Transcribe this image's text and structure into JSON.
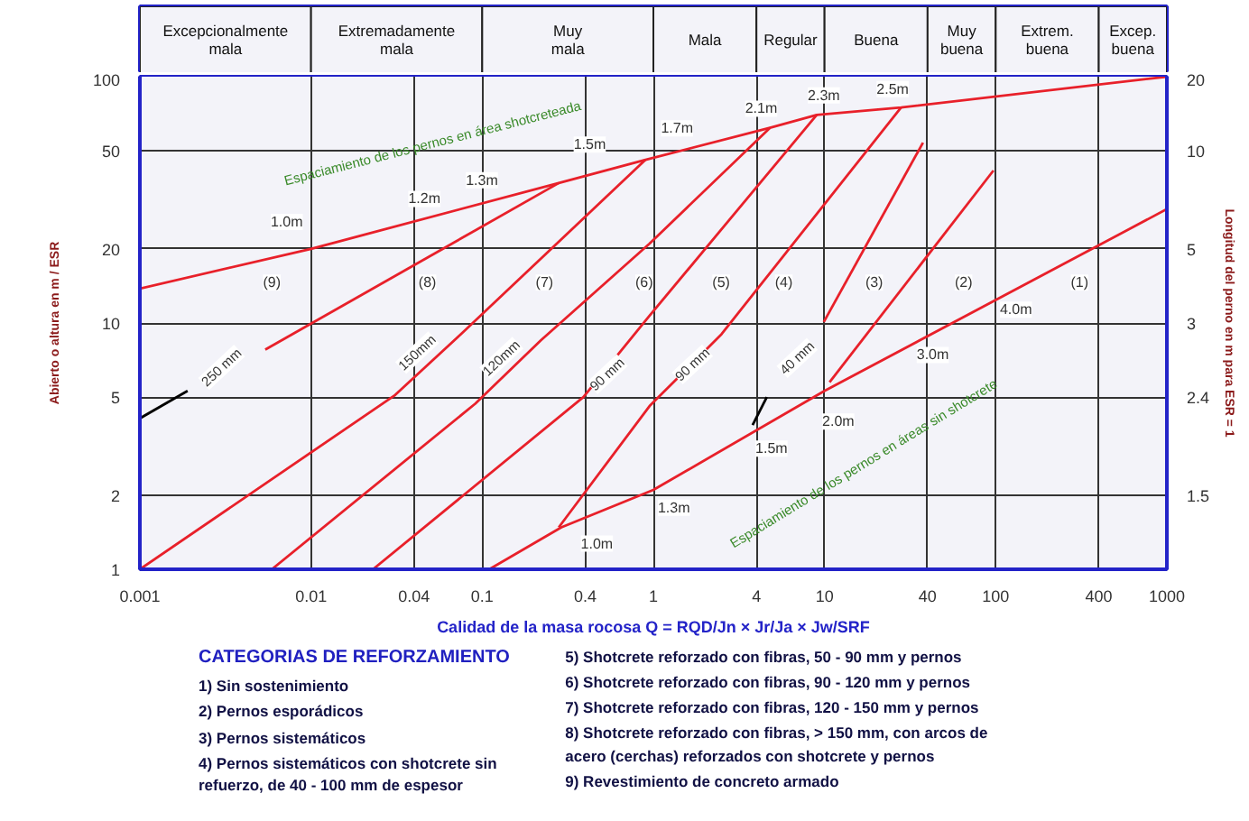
{
  "chart_data": {
    "type": "line",
    "log": "xy",
    "grid": true,
    "marker": "none",
    "line_style": "solid",
    "xlabel": "Calidad de la masa rocosa Q = RQD/Jn × Jr/Ja × Jw/SRF",
    "ylabel": "Abierto o altura en m / ESR",
    "y2label": "Longitud del perno en m para ESR = 1",
    "xlim": [
      0.001,
      1000
    ],
    "xticks": [
      0.001,
      0.01,
      0.04,
      0.1,
      0.4,
      1,
      4,
      10,
      40,
      100,
      400,
      1000
    ],
    "ylim": [
      1,
      100
    ],
    "yticks": [
      1,
      2,
      5,
      10,
      20,
      50,
      100
    ],
    "y2_categories": [
      "20",
      "10",
      "5",
      "3",
      "2.4",
      "1.5"
    ],
    "bands": [
      {
        "axis": "x",
        "from": 0.001,
        "to": 0.01,
        "label": "Excepcionalmente mala",
        "color": "#f3f3f9"
      },
      {
        "axis": "x",
        "from": 0.01,
        "to": 0.1,
        "label": "Extremadamente mala",
        "color": "#f3f3f9"
      },
      {
        "axis": "x",
        "from": 0.1,
        "to": 1,
        "label": "Muy mala",
        "color": "#f3f3f9"
      },
      {
        "axis": "x",
        "from": 1,
        "to": 4,
        "label": "Mala",
        "color": "#f3f3f9"
      },
      {
        "axis": "x",
        "from": 4,
        "to": 10,
        "label": "Regular",
        "color": "#f3f3f9"
      },
      {
        "axis": "x",
        "from": 10,
        "to": 40,
        "label": "Buena",
        "color": "#f3f3f9"
      },
      {
        "axis": "x",
        "from": 40,
        "to": 100,
        "label": "Muy buena",
        "color": "#f3f3f9"
      },
      {
        "axis": "x",
        "from": 100,
        "to": 400,
        "label": "Extrem. buena",
        "color": "#f3f3f9"
      },
      {
        "axis": "x",
        "from": 400,
        "to": 1000,
        "label": "Excep. buena",
        "color": "#f3f3f9"
      }
    ],
    "series": [
      {
        "color": "#e8202a",
        "x": [
          0.001,
          0.01,
          0.28,
          0.9,
          4.8,
          9,
          28,
          1000
        ],
        "values": [
          13.8,
          20,
          37,
          46,
          62,
          70,
          75,
          100
        ]
      },
      {
        "color": "#e8202a",
        "x": [
          0.11,
          0.29,
          1,
          10,
          1000
        ],
        "values": [
          1,
          1.48,
          2.1,
          5.3,
          29
        ]
      },
      {
        "color": "#000000",
        "x": [
          0.001,
          0.0019
        ],
        "values": [
          4.1,
          5.3
        ]
      },
      {
        "color": "#e8202a",
        "x": [
          0.0054,
          0.28
        ],
        "values": [
          7.8,
          37
        ]
      },
      {
        "color": "#e8202a",
        "x": [
          0.001,
          0.031,
          0.075,
          0.9
        ],
        "values": [
          1,
          5.1,
          9,
          46
        ]
      },
      {
        "color": "#e8202a",
        "x": [
          0.0059,
          0.091,
          0.22,
          0.95,
          4.8
        ],
        "values": [
          1,
          4.7,
          8.5,
          21,
          62
        ]
      },
      {
        "color": "#e8202a",
        "x": [
          0.023,
          0.39,
          0.95,
          9
        ],
        "values": [
          1,
          5,
          10.7,
          70
        ]
      },
      {
        "color": "#e8202a",
        "x": [
          0.28,
          0.95,
          2.5,
          28
        ],
        "values": [
          1.48,
          4.6,
          9,
          75
        ]
      },
      {
        "color": "#000000",
        "x": [
          3.8,
          4.6
        ],
        "values": [
          3.85,
          5
        ]
      },
      {
        "color": "#e8202a",
        "x": [
          9.9,
          37.6
        ],
        "values": [
          10.1,
          54
        ]
      },
      {
        "color": "#e8202a",
        "x": [
          10.7,
          97
        ],
        "values": [
          5.75,
          41.6
        ]
      }
    ],
    "annotations": [
      "(9)",
      "(8)",
      "(7)",
      "(6)",
      "(5)",
      "(4)",
      "(3)",
      "(2)",
      "(1)",
      "1.0m",
      "1.2m",
      "1.3m",
      "1.5m",
      "1.7m",
      "2.1m",
      "2.3m",
      "2.5m",
      "1.0m",
      "1.3m",
      "1.5m",
      "2.0m",
      "3.0m",
      "4.0m",
      "250 mm",
      "150mm",
      "120mm",
      "90 mm",
      "90 mm",
      "40 mm",
      "Espaciamiento de los pernos en área shotcreteada",
      "Espaciamiento de los pernos en áreas sin shotcrete",
      "CATEGORIAS DE REFORZAMIENTO",
      "1) Sin sostenimiento",
      "2) Pernos esporádicos",
      "3) Pernos sistemáticos",
      "4) Pernos sistemáticos con shotcrete sin refuerzo, de 40 - 100 mm de espesor",
      "5) Shotcrete reforzado con fibras, 50 - 90 mm y pernos",
      "6) Shotcrete reforzado con fibras, 90 - 120 mm y pernos",
      "7) Shotcrete reforzado con fibras, 120 - 150 mm y pernos",
      "8) Shotcrete reforzado con fibras, > 150 mm, con arcos de acero (cerchas) reforzados con shotcrete y pernos",
      "9) Revestimiento de concreto armado"
    ]
  }
}
